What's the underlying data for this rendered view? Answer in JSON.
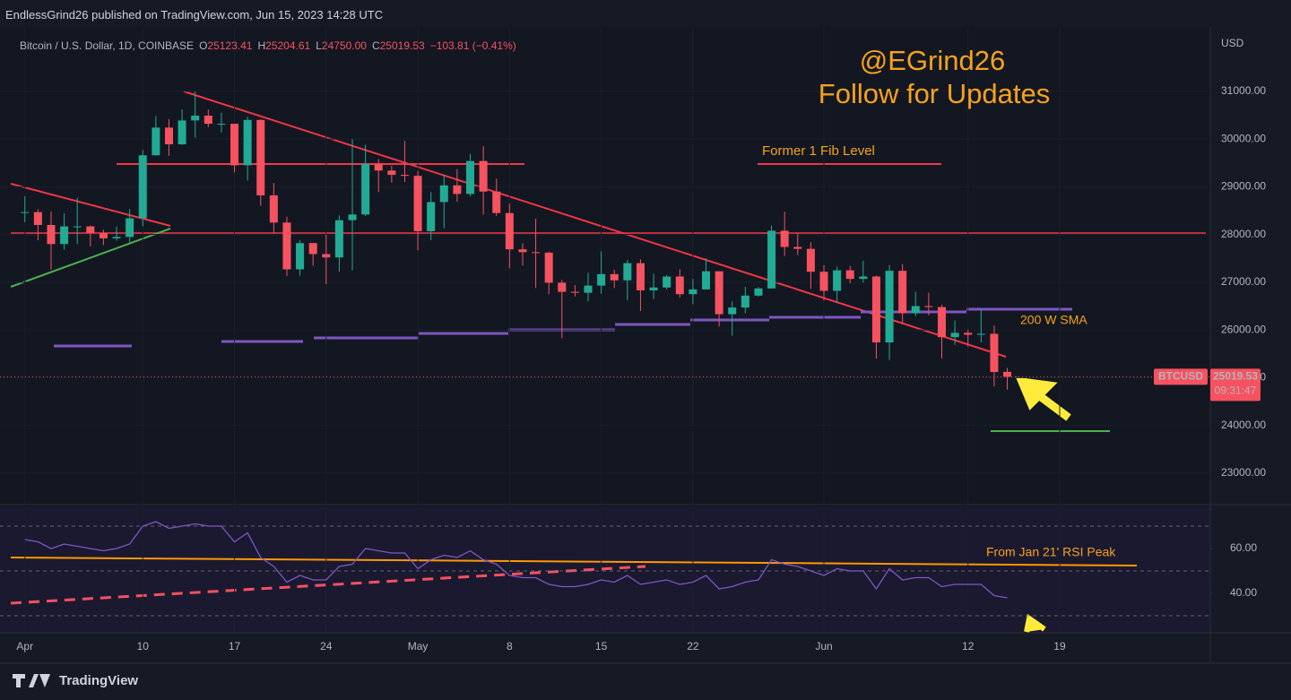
{
  "header": {
    "publisher": "EndlessGrind26 published on TradingView.com, Jun 15, 2023 14:28 UTC"
  },
  "footer": {
    "brand": "TradingView"
  },
  "chart_data": {
    "type": "candlestick",
    "symbol": "Bitcoin / U.S. Dollar, 1D, COINBASE",
    "legend": [
      {
        "name": "O",
        "value": 25123.41,
        "label": "25123.41"
      },
      {
        "name": "H",
        "value": 25204.61,
        "label": "25204.61"
      },
      {
        "name": "L",
        "value": 24750,
        "label": "24750.00"
      },
      {
        "name": "C",
        "value": 25019.53,
        "label": "25019.53"
      }
    ],
    "change": {
      "value": -103.81,
      "label": "−103.81 (−0.41%)"
    },
    "annotations": [
      "@EGrind26",
      "Follow for Updates",
      "Former 1 Fib Level",
      "200 W SMA"
    ],
    "axis_label": "USD",
    "ylim": [
      22360,
      32350
    ],
    "yticks": [
      {
        "value": 23000,
        "label": "23000.00"
      },
      {
        "value": 24000,
        "label": "24000.00"
      },
      {
        "value": 25000,
        "label": "25000.00"
      },
      {
        "value": 26000,
        "label": "26000.00"
      },
      {
        "value": 27000,
        "label": "27000.00"
      },
      {
        "value": 28000,
        "label": "28000.00"
      },
      {
        "value": 29000,
        "label": "29000.00"
      },
      {
        "value": 30000,
        "label": "30000.00"
      },
      {
        "value": 31000,
        "label": "31000.00"
      }
    ],
    "xlim": [
      -1.9,
      90.5
    ],
    "xticks": [
      {
        "value": 0,
        "label": "Apr"
      },
      {
        "value": 9,
        "label": "10"
      },
      {
        "value": 16,
        "label": "17"
      },
      {
        "value": 23,
        "label": "24"
      },
      {
        "value": 30,
        "label": "May"
      },
      {
        "value": 37,
        "label": "8"
      },
      {
        "value": 44,
        "label": "15"
      },
      {
        "value": 51,
        "label": "22"
      },
      {
        "value": 61,
        "label": "Jun"
      },
      {
        "value": 72,
        "label": "12"
      },
      {
        "value": 79,
        "label": "19"
      }
    ],
    "open": [
      28460,
      28470,
      28200,
      27800,
      28170,
      28170,
      28030,
      27920,
      27950,
      28340,
      29660,
      30240,
      29890,
      30390,
      30490,
      30320,
      30320,
      29450,
      30400,
      28820,
      28250,
      27270,
      27820,
      27590,
      27520,
      28300,
      28420,
      29480,
      29340,
      29250,
      29230,
      28070,
      28680,
      29030,
      28850,
      29540,
      28900,
      28450,
      27690,
      27630,
      27620,
      26990,
      26800,
      26780,
      26930,
      27170,
      27040,
      27400,
      26830,
      26890,
      27120,
      26750,
      26850,
      27230,
      26330,
      26470,
      26720,
      26870,
      28080,
      27740,
      27700,
      27220,
      26820,
      27250,
      27070,
      27120,
      25740,
      27240,
      26350,
      26500,
      26480,
      25850,
      25940,
      25900,
      25920,
      25123.41
    ],
    "high": [
      28800,
      28530,
      28480,
      28440,
      28770,
      28190,
      28100,
      28170,
      28530,
      29770,
      30480,
      30420,
      30620,
      31000,
      30620,
      30550,
      30320,
      30470,
      30410,
      29080,
      28370,
      27880,
      27820,
      28000,
      28400,
      30000,
      29880,
      29580,
      29440,
      29960,
      29330,
      28890,
      29260,
      29370,
      29690,
      29850,
      29170,
      28650,
      27820,
      28330,
      27640,
      27050,
      26940,
      27200,
      27650,
      27260,
      27470,
      27480,
      27180,
      27150,
      27270,
      27070,
      27500,
      27230,
      26600,
      26900,
      26900,
      28190,
      28480,
      28040,
      27840,
      27360,
      27330,
      27340,
      27450,
      27140,
      27360,
      27380,
      26800,
      26780,
      26530,
      26200,
      26000,
      26420,
      26090,
      25204.61
    ],
    "low": [
      28260,
      27880,
      27260,
      27680,
      27800,
      27750,
      27780,
      27870,
      27820,
      28170,
      29660,
      29650,
      29880,
      30030,
      30250,
      30140,
      29300,
      29130,
      28600,
      28020,
      27130,
      27140,
      27350,
      26960,
      27220,
      27250,
      28390,
      28890,
      29090,
      29100,
      27670,
      27880,
      28130,
      28690,
      28800,
      28420,
      28390,
      27290,
      27350,
      26880,
      26750,
      25830,
      26700,
      26600,
      26760,
      26880,
      26620,
      26400,
      26650,
      26850,
      26680,
      26540,
      26850,
      26070,
      25880,
      26350,
      26700,
      26870,
      27550,
      27570,
      26860,
      26620,
      26570,
      26980,
      26990,
      25400,
      25370,
      26120,
      26290,
      26310,
      25400,
      25690,
      25650,
      25740,
      24820,
      24750
    ],
    "close": [
      28470,
      28200,
      27800,
      28170,
      28170,
      28030,
      27920,
      27950,
      28340,
      29660,
      30240,
      29890,
      30390,
      30490,
      30320,
      30320,
      29450,
      30400,
      28820,
      28250,
      27270,
      27820,
      27590,
      27520,
      28300,
      28420,
      29480,
      29340,
      29250,
      29230,
      28070,
      28680,
      29030,
      28850,
      29540,
      28900,
      28450,
      27690,
      27630,
      27620,
      26990,
      26800,
      26780,
      26930,
      27170,
      27040,
      27400,
      26830,
      26890,
      27120,
      26750,
      26850,
      27230,
      26330,
      26470,
      26720,
      26870,
      28080,
      27740,
      27700,
      27220,
      26820,
      27250,
      27070,
      27120,
      25740,
      27240,
      26350,
      26500,
      26480,
      25850,
      25940,
      25900,
      25920,
      25120,
      25019.53
    ],
    "up_color": "#22ab94",
    "down_color": "#f7525f",
    "last_price": {
      "symbol": "BTCUSD",
      "value": 25019.53,
      "label": "25019.53",
      "countdown": "09:31:47"
    },
    "rsi": {
      "values": [
        64,
        63,
        60,
        62,
        61,
        60,
        59,
        60,
        62,
        70,
        72,
        69,
        70,
        71,
        70,
        70,
        63,
        67,
        56,
        52,
        45,
        48,
        46,
        46,
        52,
        53,
        60,
        59,
        58,
        58,
        51,
        55,
        57,
        56,
        59,
        55,
        53,
        48,
        47,
        47,
        44,
        43,
        43,
        44,
        46,
        45,
        48,
        44,
        45,
        46,
        44,
        45,
        48,
        42,
        43,
        45,
        46,
        55,
        53,
        52,
        50,
        48,
        51,
        50,
        50,
        42,
        51,
        46,
        47,
        47,
        43,
        44,
        44,
        44,
        39,
        38
      ],
      "ylim": [
        22.8,
        78.8
      ],
      "yticks": [
        {
          "value": 40,
          "label": "40.00"
        },
        {
          "value": 60,
          "label": "60.00"
        }
      ],
      "bands": [
        30,
        50,
        70
      ],
      "color": "#7e57c2",
      "annotation": "From Jan 21' RSI Peak"
    }
  }
}
